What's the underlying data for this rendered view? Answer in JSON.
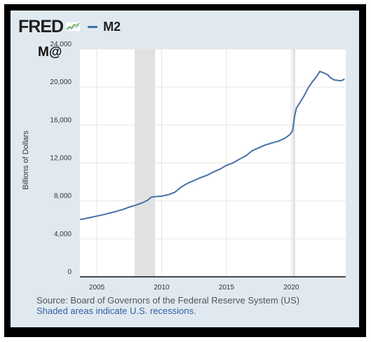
{
  "header": {
    "brand": "FRED",
    "series_label": "M2",
    "tag": "M@"
  },
  "chart_data": {
    "type": "line",
    "title": "M2",
    "xlabel": "",
    "ylabel": "Billions of Dollars",
    "xlim": [
      2003.7,
      2024.2
    ],
    "ylim": [
      0,
      24000
    ],
    "x_ticks": [
      2005,
      2010,
      2015,
      2020
    ],
    "y_ticks": [
      0,
      4000,
      8000,
      12000,
      16000,
      20000,
      24000
    ],
    "y_tick_labels": [
      "0",
      "4,000",
      "8,000",
      "12,000",
      "16,000",
      "20,000",
      "24,000"
    ],
    "grid": true,
    "recessions": [
      [
        2007.92,
        2009.5
      ],
      [
        2020.1,
        2020.3
      ]
    ],
    "series": [
      {
        "name": "M2",
        "color": "#4572a7",
        "x": [
          2003.7,
          2004.0,
          2004.5,
          2005.0,
          2005.5,
          2006.0,
          2006.5,
          2007.0,
          2007.5,
          2008.0,
          2008.5,
          2008.9,
          2009.2,
          2009.5,
          2010.0,
          2010.5,
          2011.0,
          2011.5,
          2011.8,
          2012.0,
          2012.5,
          2013.0,
          2013.5,
          2014.0,
          2014.5,
          2015.0,
          2015.5,
          2016.0,
          2016.5,
          2017.0,
          2017.5,
          2018.0,
          2018.5,
          2019.0,
          2019.5,
          2019.9,
          2020.1,
          2020.25,
          2020.4,
          2020.6,
          2021.0,
          2021.3,
          2021.6,
          2022.0,
          2022.2,
          2022.5,
          2022.8,
          2023.0,
          2023.3,
          2023.6,
          2023.8,
          2024.0,
          2024.1
        ],
        "values": [
          6050,
          6100,
          6250,
          6400,
          6550,
          6720,
          6900,
          7100,
          7350,
          7550,
          7800,
          8050,
          8400,
          8450,
          8500,
          8650,
          8900,
          9450,
          9700,
          9850,
          10150,
          10450,
          10700,
          11050,
          11350,
          11750,
          12000,
          12400,
          12750,
          13300,
          13600,
          13900,
          14100,
          14300,
          14600,
          15000,
          15400,
          16900,
          17800,
          18200,
          19100,
          19900,
          20500,
          21200,
          21650,
          21500,
          21300,
          21000,
          20750,
          20700,
          20650,
          20750,
          20850
        ]
      }
    ]
  },
  "footer": {
    "source": "Source: Board of Governors of the Federal Reserve System (US)",
    "note": "Shaded areas indicate U.S. recessions."
  }
}
